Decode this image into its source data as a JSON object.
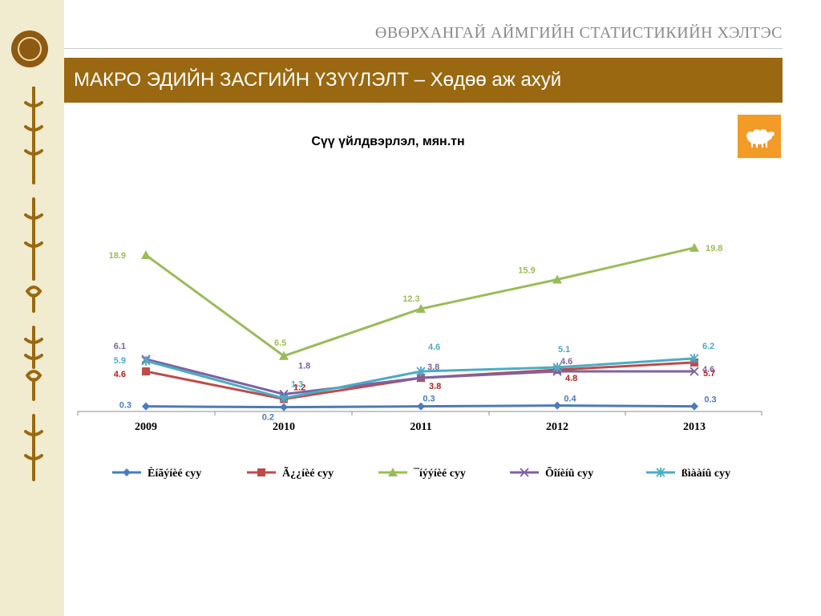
{
  "header": {
    "org_title": "ӨВӨРХАНГАЙ АЙМГИЙН СТАТИСТИКИЙН ХЭЛТЭС",
    "banner_title": "МАКРО ЭДИЙН ЗАСГИЙН ҮЗҮҮЛЭЛТ – Хөдөө аж ахуй"
  },
  "icons": {
    "logo": "statistics-emblem-icon",
    "badge": "sheep-icon"
  },
  "colors": {
    "banner": "#9a6810",
    "badge": "#f29b26",
    "sidebar": "#f1ecd0"
  },
  "chart_data": {
    "type": "line",
    "title": "Сүү үйлдвэрлэл, мян.тн",
    "categories": [
      "2009",
      "2010",
      "2011",
      "2012",
      "2013"
    ],
    "legend_position": "bottom",
    "grid": false,
    "series": [
      {
        "name": "Èíãýíèé cyy",
        "color": "#4a7bbd",
        "marker": "diamond",
        "values": [
          0.3,
          0.2,
          0.3,
          0.4,
          0.3
        ]
      },
      {
        "name": "Ã¿¿íèé cyy",
        "color": "#be4b48",
        "marker": "square",
        "values": [
          4.6,
          1.2,
          3.8,
          4.8,
          5.7
        ]
      },
      {
        "name": "¯íýýíèé cyy",
        "color": "#9bbb59",
        "marker": "triangle",
        "values": [
          18.9,
          6.5,
          12.3,
          15.9,
          19.8
        ]
      },
      {
        "name": "Õîíèíû cyy",
        "color": "#7e62a1",
        "marker": "x",
        "values": [
          6.1,
          1.8,
          3.8,
          4.6,
          4.6
        ]
      },
      {
        "name": "ßìààíû cyy",
        "color": "#4bacc6",
        "marker": "star",
        "values": [
          5.9,
          1.3,
          4.6,
          5.1,
          6.2
        ]
      }
    ]
  }
}
